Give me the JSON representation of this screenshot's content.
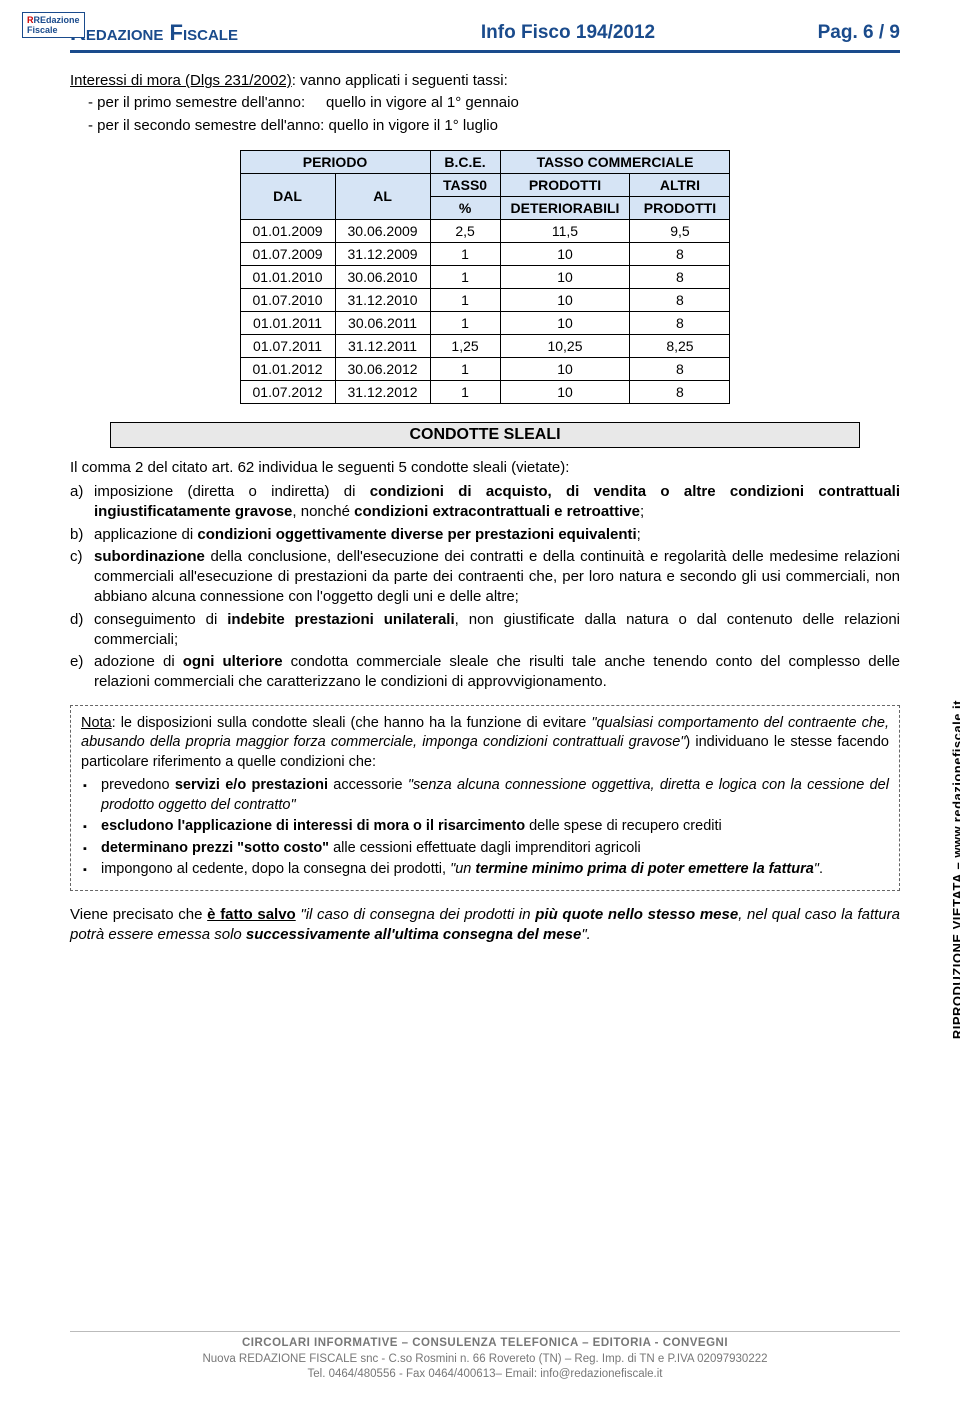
{
  "header": {
    "logo_line1": "REdazione",
    "logo_line2": "Fiscale",
    "title": "Redazione Fiscale",
    "center": "Info Fisco 194/2012",
    "right": "Pag. 6 / 9"
  },
  "intro": {
    "lead_underlined": "Interessi di mora (Dlgs 231/2002)",
    "lead_rest": ": vanno applicati i seguenti tassi:",
    "li1_a": "per il primo semestre dell'anno:",
    "li1_b": "quello in vigore al 1° gennaio",
    "li2_a": "per il secondo semestre dell'anno:",
    "li2_b": "quello in vigore il 1° luglio"
  },
  "table": {
    "h_periodo": "PERIODO",
    "h_bce": "B.C.E.",
    "h_tasso_comm": "TASSO COMMERCIALE",
    "h_dal": "DAL",
    "h_al": "AL",
    "h_tass0": "TASS0",
    "h_pct": "%",
    "h_prod": "PRODOTTI",
    "h_det": "DETERIORABILI",
    "h_altri": "ALTRI",
    "h_prod2": "PRODOTTI",
    "rows": [
      {
        "dal": "01.01.2009",
        "al": "30.06.2009",
        "pct": "2,5",
        "prod": "11,5",
        "altri": "9,5"
      },
      {
        "dal": "01.07.2009",
        "al": "31.12.2009",
        "pct": "1",
        "prod": "10",
        "altri": "8"
      },
      {
        "dal": "01.01.2010",
        "al": "30.06.2010",
        "pct": "1",
        "prod": "10",
        "altri": "8"
      },
      {
        "dal": "01.07.2010",
        "al": "31.12.2010",
        "pct": "1",
        "prod": "10",
        "altri": "8"
      },
      {
        "dal": "01.01.2011",
        "al": "30.06.2011",
        "pct": "1",
        "prod": "10",
        "altri": "8"
      },
      {
        "dal": "01.07.2011",
        "al": "31.12.2011",
        "pct": "1,25",
        "prod": "10,25",
        "altri": "8,25"
      },
      {
        "dal": "01.01.2012",
        "al": "30.06.2012",
        "pct": "1",
        "prod": "10",
        "altri": "8"
      },
      {
        "dal": "01.07.2012",
        "al": "31.12.2012",
        "pct": "1",
        "prod": "10",
        "altri": "8"
      }
    ]
  },
  "section_title": "CONDOTTE SLEALI",
  "body": {
    "p1": "Il comma 2 del citato art. 62 individua le seguenti 5 condotte sleali (vietate):",
    "a_pre": "imposizione (diretta o indiretta) di ",
    "a_b1": "condizioni di acquisto, di vendita o altre condizioni contrattuali ingiustificatamente gravose",
    "a_mid": ", nonché ",
    "a_b2": "condizioni extracontrattuali e retroattive",
    "a_end": ";",
    "b_pre": "applicazione di ",
    "b_b": "condizioni oggettivamente diverse per prestazioni equivalenti",
    "b_end": ";",
    "c_b": "subordinazione",
    "c_rest": " della conclusione, dell'esecuzione dei contratti e della continuità e regolarità delle medesime relazioni commerciali all'esecuzione di prestazioni da parte dei contraenti che, per loro natura e secondo gli usi commerciali, non abbiano alcuna connessione con l'oggetto degli uni e delle altre;",
    "d_pre": "conseguimento di ",
    "d_b": "indebite prestazioni unilaterali",
    "d_rest": ", non giustificate dalla natura o dal contenuto delle relazioni commerciali;",
    "e_pre": "adozione di ",
    "e_b": "ogni ulteriore",
    "e_rest": " condotta commerciale sleale che risulti tale anche tenendo conto del complesso delle relazioni commerciali che caratterizzano le condizioni di approvvigionamento."
  },
  "nota": {
    "lead_u": "Nota",
    "lead": ": le disposizioni sulla condotte sleali (che hanno ha la funzione di evitare ",
    "lead_i": "\"qualsiasi comportamento del contraente che, abusando della propria maggior forza commerciale, imponga condizioni contrattuali gravose\"",
    "lead_end": ") individuano le stesse facendo particolare riferimento a quelle condizioni che:",
    "li1_pre": "prevedono ",
    "li1_b": "servizi e/o prestazioni",
    "li1_mid": " accessorie ",
    "li1_i": "\"senza alcuna connessione oggettiva, diretta e logica con la cessione del prodotto oggetto del contratto\"",
    "li2_b": "escludono l'applicazione di interessi di mora o il risarcimento",
    "li2_rest": " delle spese di recupero crediti",
    "li3_b": "determinano prezzi \"sotto costo\"",
    "li3_rest": " alle cessioni effettuate dagli imprenditori agricoli",
    "li4_pre": "impongono al cedente, dopo la consegna dei prodotti, ",
    "li4_i1": "\"un ",
    "li4_bi": "termine minimo prima di poter emettere la fattura",
    "li4_i2": "\"",
    "li4_end": "."
  },
  "closing": {
    "pre": "Viene precisato che ",
    "bu": "è fatto salvo",
    "mid_i1": " \"il caso di consegna dei prodotti in ",
    "mid_bi": "più quote nello stesso mese",
    "mid_i2": ", nel qual caso la fattura potrà essere emessa solo ",
    "end_bi": "successivamente all'ultima consegna del mese",
    "end_i": "\"."
  },
  "side": "RIPRODUZIONE VIETATA – www.redazionefiscale.it",
  "footer": {
    "l1": "CIRCOLARI INFORMATIVE – CONSULENZA TELEFONICA – EDITORIA - CONVEGNI",
    "l2": "Nuova REDAZIONE FISCALE snc -  C.so Rosmini n. 66 Rovereto (TN) – Reg. Imp. di TN e P.IVA 02097930222",
    "l3": "Tel. 0464/480556 - Fax 0464/400613–   Email: info@redazionefiscale.it"
  }
}
